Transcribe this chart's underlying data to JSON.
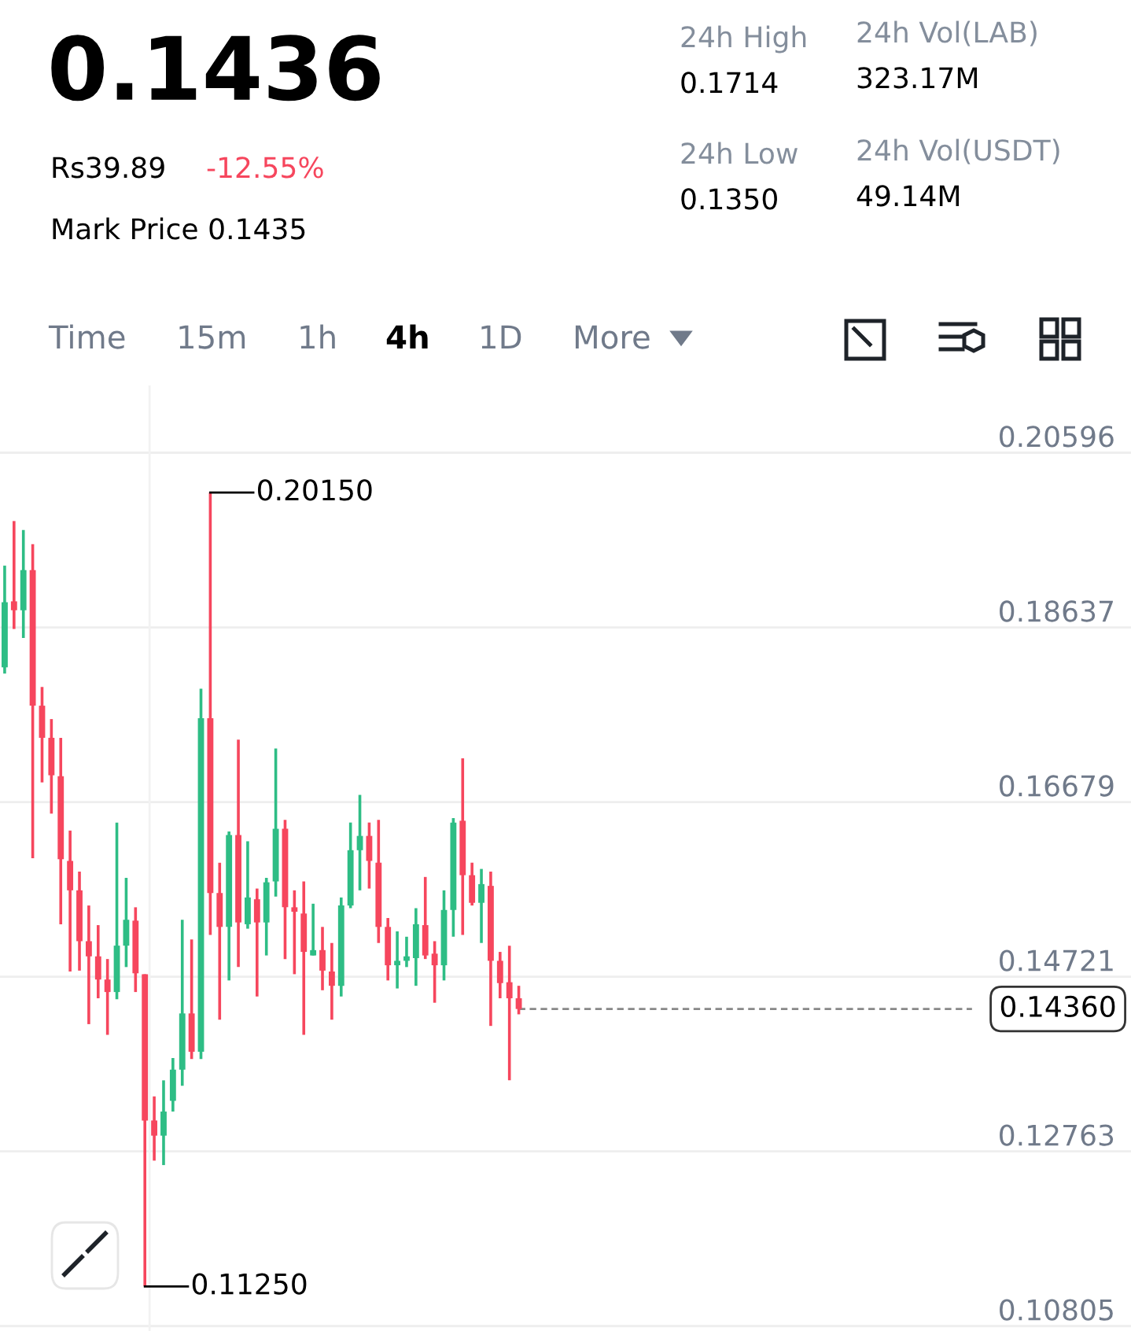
{
  "chart_data": [
    {
      "type": "other",
      "annotations": [
        "0.1436",
        "Rs39.89",
        "-12.55%",
        "Mark Price 0.1435",
        "24h High",
        "0.1714",
        "24h Low",
        "0.1350",
        "24h Vol(LAB)",
        "323.17M",
        "24h Vol(USDT)",
        "49.14M",
        "Time",
        "15m",
        "1h",
        "4h",
        "1D",
        "More"
      ]
    },
    {
      "type": "candlestick",
      "categories": [
        null,
        null,
        null,
        null,
        null,
        null,
        null,
        null,
        null,
        null,
        null,
        null,
        null,
        null,
        null,
        null,
        null,
        null,
        null,
        null,
        null,
        null,
        null,
        null,
        null,
        null,
        null,
        null,
        null,
        null,
        null,
        null,
        null,
        null,
        null,
        null,
        null,
        null,
        null,
        null,
        null,
        null,
        null,
        null,
        null,
        null,
        null,
        null,
        null,
        null,
        null,
        null,
        null,
        null,
        null,
        null,
        null,
        null,
        null,
        null,
        null,
        null,
        null,
        null,
        null,
        null,
        null,
        null,
        null,
        null,
        null,
        null,
        null,
        null,
        null,
        null,
        null,
        null,
        null,
        null,
        null,
        null,
        null,
        null,
        null,
        null,
        null,
        null,
        null,
        null,
        null,
        null,
        null,
        null,
        null,
        null,
        null,
        null,
        null,
        null,
        null,
        null,
        null,
        null,
        null,
        null,
        null,
        null,
        null,
        null,
        null,
        null,
        null,
        null,
        null,
        null,
        null,
        null,
        null,
        null,
        null
      ],
      "ohlc": [
        [
          0.1819,
          0.1933,
          0.1812,
          0.1892
        ],
        [
          0.1893,
          0.1983,
          0.1862,
          0.1883
        ],
        [
          0.1883,
          0.1973,
          0.1852,
          0.1928
        ],
        [
          0.1928,
          0.1957,
          0.1605,
          0.1776
        ],
        [
          0.1776,
          0.1797,
          0.169,
          0.174
        ],
        [
          0.174,
          0.1761,
          0.1655,
          0.1698
        ],
        [
          0.1697,
          0.174,
          0.1531,
          0.1604
        ],
        [
          0.1602,
          0.1636,
          0.1478,
          0.1569
        ],
        [
          0.1569,
          0.159,
          0.1479,
          0.1512
        ],
        [
          0.1512,
          0.1552,
          0.1419,
          0.1495
        ],
        [
          0.1495,
          0.153,
          0.1448,
          0.1469
        ],
        [
          0.1469,
          0.1492,
          0.1407,
          0.1455
        ],
        [
          0.1455,
          0.1645,
          0.1447,
          0.1507
        ],
        [
          0.1507,
          0.1583,
          0.1483,
          0.1536
        ],
        [
          0.1535,
          0.155,
          0.1455,
          0.1476
        ],
        [
          0.1475,
          0.1475,
          0.1125,
          0.1311
        ],
        [
          0.1311,
          0.1338,
          0.1266,
          0.1294
        ],
        [
          0.1294,
          0.1356,
          0.1261,
          0.1321
        ],
        [
          0.1333,
          0.1381,
          0.1321,
          0.1368
        ],
        [
          0.1368,
          0.1536,
          0.135,
          0.1431
        ],
        [
          0.1431,
          0.1514,
          0.138,
          0.1388
        ],
        [
          0.1388,
          0.1795,
          0.138,
          0.1762
        ],
        [
          0.1762,
          0.2015,
          0.1519,
          0.1566
        ],
        [
          0.1566,
          0.16,
          0.1424,
          0.1528
        ],
        [
          0.1528,
          0.1635,
          0.1468,
          0.1631
        ],
        [
          0.1631,
          0.1738,
          0.1483,
          0.1533
        ],
        [
          0.1531,
          0.1624,
          0.1526,
          0.1561
        ],
        [
          0.1559,
          0.1571,
          0.145,
          0.1533
        ],
        [
          0.1533,
          0.1583,
          0.1496,
          0.1578
        ],
        [
          0.1579,
          0.1728,
          0.1562,
          0.1638
        ],
        [
          0.1638,
          0.1648,
          0.1492,
          0.155
        ],
        [
          0.155,
          0.1569,
          0.1475,
          0.1545
        ],
        [
          0.1543,
          0.1579,
          0.1407,
          0.15
        ],
        [
          0.1496,
          0.1554,
          0.1496,
          0.1502
        ],
        [
          0.1502,
          0.1528,
          0.1457,
          0.1479
        ],
        [
          0.1478,
          0.151,
          0.1424,
          0.1462
        ],
        [
          0.1462,
          0.1561,
          0.145,
          0.1552
        ],
        [
          0.1552,
          0.1645,
          0.1549,
          0.1614
        ],
        [
          0.1614,
          0.1676,
          0.1569,
          0.163
        ],
        [
          0.163,
          0.1645,
          0.1571,
          0.1602
        ],
        [
          0.16,
          0.1648,
          0.151,
          0.1528
        ],
        [
          0.1528,
          0.1538,
          0.1468,
          0.1485
        ],
        [
          0.1485,
          0.1523,
          0.1459,
          0.149
        ],
        [
          0.149,
          0.1517,
          0.1483,
          0.1495
        ],
        [
          0.1493,
          0.1549,
          0.1462,
          0.1531
        ],
        [
          0.153,
          0.1584,
          0.1492,
          0.1496
        ],
        [
          0.1498,
          0.1512,
          0.1443,
          0.1485
        ],
        [
          0.1485,
          0.1569,
          0.1468,
          0.1547
        ],
        [
          0.1547,
          0.165,
          0.1517,
          0.1645
        ],
        [
          0.1647,
          0.1717,
          0.1519,
          0.1586
        ],
        [
          0.1586,
          0.16,
          0.1552,
          0.1555
        ],
        [
          0.1555,
          0.1593,
          0.151,
          0.1576
        ],
        [
          0.1574,
          0.159,
          0.1417,
          0.149
        ],
        [
          0.149,
          0.15,
          0.1448,
          0.1465
        ],
        [
          0.1466,
          0.1507,
          0.1356,
          0.1448
        ],
        [
          0.1448,
          0.1462,
          0.143,
          0.1436
        ],
        null,
        null,
        null,
        null,
        null,
        null,
        null,
        null,
        null,
        null,
        null,
        null,
        null,
        null,
        null,
        null,
        null,
        null,
        null,
        null,
        null,
        null,
        null,
        null,
        null,
        null,
        null,
        null,
        null,
        null,
        null,
        null,
        null,
        null,
        null,
        null,
        null,
        null,
        null,
        null,
        null,
        null,
        null,
        null,
        null,
        null,
        null,
        null,
        null,
        null,
        null,
        null,
        null,
        null,
        null,
        null,
        null,
        null,
        null,
        null,
        null,
        null,
        null,
        null,
        null
      ],
      "colors": [
        "#2ebd85",
        "#f6465d",
        "#2ebd85",
        "#f6465d",
        "#f6465d",
        "#f6465d",
        "#f6465d",
        "#f6465d",
        "#f6465d",
        "#f6465d",
        "#f6465d",
        "#f6465d",
        "#2ebd85",
        "#2ebd85",
        "#f6465d",
        "#f6465d",
        "#f6465d",
        "#2ebd85",
        "#2ebd85",
        "#2ebd85",
        "#f6465d",
        "#2ebd85",
        "#f6465d",
        "#f6465d",
        "#2ebd85",
        "#f6465d",
        "#2ebd85",
        "#f6465d",
        "#2ebd85",
        "#2ebd85",
        "#f6465d",
        "#f6465d",
        "#f6465d",
        "#2ebd85",
        "#f6465d",
        "#f6465d",
        "#2ebd85",
        "#2ebd85",
        "#2ebd85",
        "#f6465d",
        "#f6465d",
        "#f6465d",
        "#2ebd85",
        "#2ebd85",
        "#2ebd85",
        "#f6465d",
        "#f6465d",
        "#2ebd85",
        "#2ebd85",
        "#f6465d",
        "#f6465d",
        "#2ebd85",
        "#f6465d",
        "#f6465d",
        "#f6465d",
        "#f6465d",
        null,
        null,
        null,
        null,
        null,
        null,
        null,
        null,
        null,
        null,
        null,
        null,
        null,
        null,
        null,
        null,
        null,
        null,
        null,
        null,
        null,
        null,
        null,
        null,
        null,
        null,
        null,
        null,
        null,
        null,
        null,
        null,
        null,
        null,
        null,
        null,
        null,
        null,
        null,
        null,
        null,
        null,
        null,
        null,
        null,
        null,
        null,
        null,
        null,
        null,
        null,
        null,
        null,
        null,
        null,
        null,
        null,
        null,
        null,
        null,
        null,
        null,
        null,
        null,
        null
      ],
      "ylim": [
        0.1075,
        0.2135
      ],
      "yticks": [
        0.20596,
        0.18637,
        0.16679,
        0.14721,
        0.12763,
        0.10805
      ],
      "grid": "y",
      "ref_lines": [
        {
          "axis": "y",
          "value": 0.1436,
          "label": "0.14360",
          "line_style": "dashed",
          "color": "#888888"
        }
      ],
      "annotations": [
        "0.20150",
        "0.11250"
      ]
    }
  ]
}
